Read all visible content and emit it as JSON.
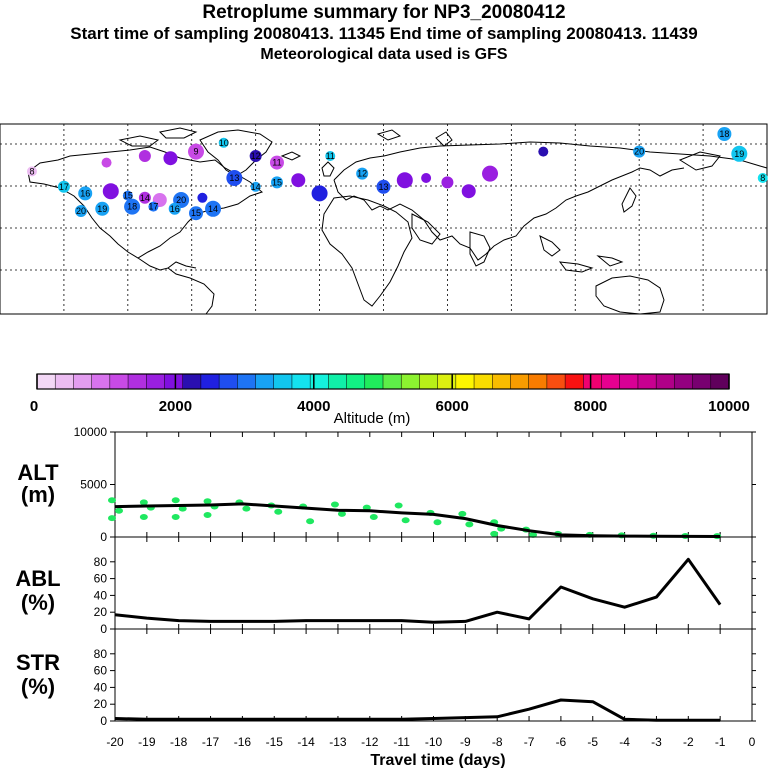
{
  "header": {
    "title": "Retroplume summary for NP3_20080412",
    "subtitle": "Start time of sampling 20080413. 11345     End time of sampling 20080413. 11439",
    "meteorology": "Meteorological data used is GFS"
  },
  "map": {
    "description_labels": [
      "20",
      "10",
      "18",
      "17",
      "16",
      "15",
      "14",
      "13",
      "12",
      "11",
      "9",
      "8",
      "19"
    ],
    "plume_points": [
      {
        "lon": -165,
        "lat": 73,
        "alt": 500,
        "label": "8"
      },
      {
        "lon": -150,
        "lat": 66,
        "alt": 3600,
        "label": "17"
      },
      {
        "lon": -140,
        "lat": 63,
        "alt": 3400,
        "label": "16"
      },
      {
        "lon": -128,
        "lat": 64,
        "alt": 2100,
        "label": ""
      },
      {
        "lon": -120,
        "lat": 62,
        "alt": 3100,
        "label": "15"
      },
      {
        "lon": -112,
        "lat": 61,
        "alt": 1400,
        "label": "14"
      },
      {
        "lon": -105,
        "lat": 60,
        "alt": 1000,
        "label": ""
      },
      {
        "lon": -95,
        "lat": 60,
        "alt": 3000,
        "label": "20"
      },
      {
        "lon": -85,
        "lat": 61,
        "alt": 2600,
        "label": ""
      },
      {
        "lon": -142,
        "lat": 55,
        "alt": 3200,
        "label": "20"
      },
      {
        "lon": -132,
        "lat": 56,
        "alt": 3300,
        "label": "19"
      },
      {
        "lon": -118,
        "lat": 57,
        "alt": 3100,
        "label": "18"
      },
      {
        "lon": -108,
        "lat": 57,
        "alt": 3100,
        "label": "17"
      },
      {
        "lon": -98,
        "lat": 56,
        "alt": 3200,
        "label": "16"
      },
      {
        "lon": -88,
        "lat": 54,
        "alt": 3100,
        "label": "15"
      },
      {
        "lon": -80,
        "lat": 56,
        "alt": 3000,
        "label": "14"
      },
      {
        "lon": -130,
        "lat": 77,
        "alt": 1200,
        "label": ""
      },
      {
        "lon": -112,
        "lat": 80,
        "alt": 1500,
        "label": ""
      },
      {
        "lon": -100,
        "lat": 79,
        "alt": 2000,
        "label": ""
      },
      {
        "lon": -88,
        "lat": 82,
        "alt": 1300,
        "label": "9"
      },
      {
        "lon": -75,
        "lat": 86,
        "alt": 3500,
        "label": "10"
      },
      {
        "lon": -60,
        "lat": 80,
        "alt": 2200,
        "label": "12"
      },
      {
        "lon": -50,
        "lat": 77,
        "alt": 1200,
        "label": "11"
      },
      {
        "lon": -70,
        "lat": 70,
        "alt": 2700,
        "label": "13"
      },
      {
        "lon": -60,
        "lat": 66,
        "alt": 3300,
        "label": "14"
      },
      {
        "lon": -50,
        "lat": 68,
        "alt": 3400,
        "label": "15"
      },
      {
        "lon": -40,
        "lat": 69,
        "alt": 2000,
        "label": ""
      },
      {
        "lon": -30,
        "lat": 63,
        "alt": 2400,
        "label": ""
      },
      {
        "lon": -25,
        "lat": 80,
        "alt": 3500,
        "label": "11"
      },
      {
        "lon": -10,
        "lat": 72,
        "alt": 3300,
        "label": "12"
      },
      {
        "lon": 0,
        "lat": 66,
        "alt": 2800,
        "label": "13"
      },
      {
        "lon": 10,
        "lat": 69,
        "alt": 1900,
        "label": ""
      },
      {
        "lon": 20,
        "lat": 70,
        "alt": 2100,
        "label": ""
      },
      {
        "lon": 30,
        "lat": 68,
        "alt": 1800,
        "label": ""
      },
      {
        "lon": 40,
        "lat": 64,
        "alt": 1900,
        "label": ""
      },
      {
        "lon": 50,
        "lat": 72,
        "alt": 1700,
        "label": ""
      },
      {
        "lon": 75,
        "lat": 82,
        "alt": 2200,
        "label": ""
      },
      {
        "lon": 120,
        "lat": 82,
        "alt": 3300,
        "label": "20"
      },
      {
        "lon": 160,
        "lat": 90,
        "alt": 3200,
        "label": "18"
      },
      {
        "lon": 167,
        "lat": 81,
        "alt": 3500,
        "label": "19"
      },
      {
        "lon": 178,
        "lat": 70,
        "alt": 3700,
        "label": "8"
      }
    ]
  },
  "colorbar": {
    "tick_labels": [
      "0",
      "2000",
      "4000",
      "6000",
      "8000",
      "10000"
    ],
    "title": "Altitude (m)",
    "colors": [
      "#f3d8f6",
      "#ecbdf2",
      "#e39df0",
      "#d873ee",
      "#c84ae6",
      "#b02fe0",
      "#9a1fe0",
      "#8010e0",
      "#2a0fb0",
      "#2020e0",
      "#1f4ef0",
      "#1e74f4",
      "#18a2f4",
      "#12c6ef",
      "#14e2ef",
      "#14f2dd",
      "#10f0a8",
      "#12f284",
      "#20ec5c",
      "#5eee48",
      "#8cf230",
      "#b8f018",
      "#dcf010",
      "#fdf500",
      "#f8dc00",
      "#f8bc00",
      "#f89c00",
      "#f87c00",
      "#f84e10",
      "#f81212",
      "#f00070",
      "#e60090",
      "#d80095",
      "#c80090",
      "#b00088",
      "#940080",
      "#780070",
      "#60005c"
    ]
  },
  "chart_data": [
    {
      "type": "line",
      "name": "ALT",
      "ylabel_top": "ALT",
      "ylabel_bottom": "(m)",
      "ylim": [
        0,
        10000
      ],
      "yticks": [
        "0",
        "5000",
        "10000"
      ],
      "x": [
        -20,
        -19,
        -18,
        -17,
        -16,
        -15,
        -14,
        -13,
        -12,
        -11,
        -10,
        -9,
        -8,
        -7,
        -6,
        -5,
        -4,
        -3,
        -2,
        -1
      ],
      "values": [
        2900,
        2950,
        3000,
        3050,
        3150,
        2950,
        2750,
        2550,
        2500,
        2300,
        2150,
        1750,
        1100,
        600,
        200,
        120,
        90,
        70,
        60,
        50
      ],
      "scatter": [
        {
          "x": -20,
          "values": [
            3500,
            2500,
            1800
          ]
        },
        {
          "x": -19,
          "values": [
            3300,
            2800,
            1900
          ]
        },
        {
          "x": -18,
          "values": [
            3500,
            2700,
            1900
          ]
        },
        {
          "x": -17,
          "values": [
            3400,
            2900,
            2100
          ]
        },
        {
          "x": -16,
          "values": [
            3300,
            2700
          ]
        },
        {
          "x": -15,
          "values": [
            3000,
            2400
          ]
        },
        {
          "x": -14,
          "values": [
            2900,
            1500
          ]
        },
        {
          "x": -13,
          "values": [
            3100,
            2200
          ]
        },
        {
          "x": -12,
          "values": [
            2800,
            1900
          ]
        },
        {
          "x": -11,
          "values": [
            3000,
            1600
          ]
        },
        {
          "x": -10,
          "values": [
            2300,
            1400
          ]
        },
        {
          "x": -9,
          "values": [
            2200,
            1200
          ]
        },
        {
          "x": -8,
          "values": [
            1400,
            800,
            300
          ]
        },
        {
          "x": -7,
          "values": [
            700,
            200
          ]
        },
        {
          "x": -6,
          "values": [
            300
          ]
        },
        {
          "x": -5,
          "values": [
            200
          ]
        },
        {
          "x": -4,
          "values": [
            150
          ]
        },
        {
          "x": -3,
          "values": [
            120
          ]
        },
        {
          "x": -2,
          "values": [
            100
          ]
        },
        {
          "x": -1,
          "values": [
            80
          ]
        }
      ]
    },
    {
      "type": "line",
      "name": "ABL",
      "ylabel_top": "ABL",
      "ylabel_bottom": "(%)",
      "ylim": [
        0,
        100
      ],
      "yticks": [
        "0",
        "20",
        "40",
        "60",
        "80"
      ],
      "x": [
        -20,
        -19,
        -18,
        -17,
        -16,
        -15,
        -14,
        -13,
        -12,
        -11,
        -10,
        -9,
        -8,
        -7,
        -6,
        -5,
        -4,
        -3,
        -2,
        -1
      ],
      "values": [
        17,
        13,
        10,
        9,
        9,
        9,
        10,
        10,
        10,
        10,
        8,
        9,
        20,
        12,
        50,
        36,
        26,
        38,
        83,
        29
      ]
    },
    {
      "type": "line",
      "name": "STR",
      "ylabel_top": "STR",
      "ylabel_bottom": "(%)",
      "ylim": [
        0,
        100
      ],
      "yticks": [
        "0",
        "20",
        "40",
        "60",
        "80"
      ],
      "x": [
        -20,
        -19,
        -18,
        -17,
        -16,
        -15,
        -14,
        -13,
        -12,
        -11,
        -10,
        -9,
        -8,
        -7,
        -6,
        -5,
        -4,
        -3,
        -2,
        -1
      ],
      "values": [
        3,
        2,
        2,
        2,
        2,
        2,
        2,
        2,
        2,
        2,
        3,
        4,
        5,
        14,
        25,
        23,
        2,
        1,
        1,
        1
      ]
    }
  ],
  "xaxis": {
    "ticks": [
      "-20",
      "-19",
      "-18",
      "-17",
      "-16",
      "-15",
      "-14",
      "-13",
      "-12",
      "-11",
      "-10",
      "-9",
      "-8",
      "-7",
      "-6",
      "-5",
      "-4",
      "-3",
      "-2",
      "-1",
      "0"
    ],
    "label": "Travel time (days)"
  }
}
